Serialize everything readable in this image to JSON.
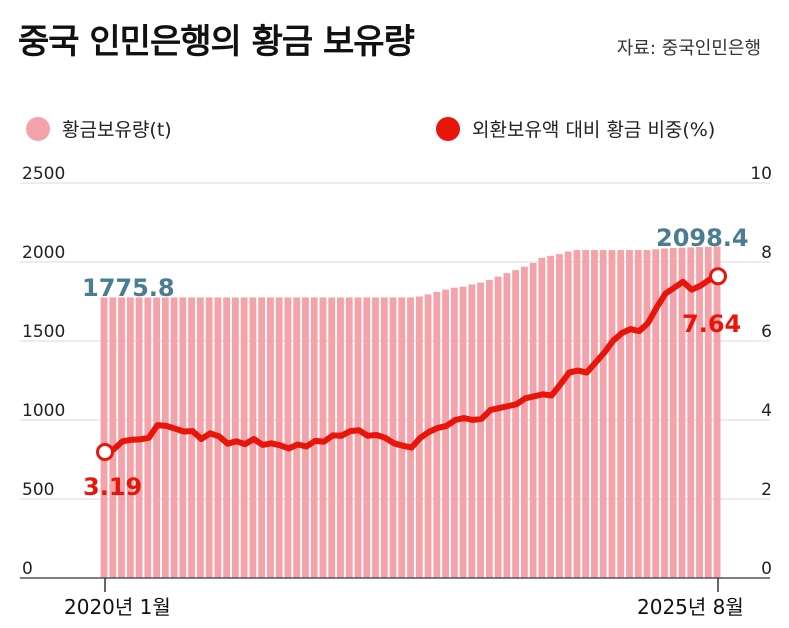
{
  "title": "중국 인민은행의 황금 보유량",
  "source": "자료: 중국인민은행",
  "legend": {
    "bars": "황금보유량(t)",
    "line": "외환보유액 대비 황금 비중(%)"
  },
  "colors": {
    "bar": "#f5a3aa",
    "bar_gap": "#ffffff",
    "line": "#e8150b",
    "annotation_blue": "#4a7d92",
    "grid": "#d9d9d9"
  },
  "annotations": {
    "first_bar": "1775.8",
    "last_bar": "2098.4",
    "first_line": "3.19",
    "last_line": "7.64"
  },
  "chart_data": {
    "type": "bar",
    "x_start_label": "2020년 1월",
    "x_end_label": "2025년 8월",
    "y_left": {
      "label": "",
      "ticks": [
        "0",
        "500",
        "1000",
        "1500",
        "2000",
        "2500"
      ],
      "lim": [
        0,
        2500
      ]
    },
    "y_right": {
      "label": "",
      "ticks": [
        "0",
        "2",
        "4",
        "6",
        "8",
        "10"
      ],
      "lim": [
        0,
        10
      ]
    },
    "grid": true,
    "legend_position": "top",
    "series": [
      {
        "name": "황금보유량(t)",
        "type": "bar",
        "axis": "left",
        "values": [
          1775.8,
          1775.8,
          1775.8,
          1775.8,
          1775.8,
          1775.8,
          1775.8,
          1775.8,
          1775.8,
          1775.8,
          1775.8,
          1775.8,
          1775.8,
          1775.8,
          1775.8,
          1775.8,
          1775.8,
          1775.8,
          1775.8,
          1775.8,
          1775.8,
          1775.8,
          1775.8,
          1775.8,
          1775.8,
          1775.8,
          1775.8,
          1775.8,
          1775.8,
          1775.8,
          1775.8,
          1775.8,
          1775.8,
          1775.8,
          1775.8,
          1775.8,
          1781.6,
          1794.9,
          1810.4,
          1825.3,
          1837.6,
          1844.0,
          1857.7,
          1869.8,
          1886.6,
          1907.4,
          1929.6,
          1948.3,
          1970.3,
          1993.7,
          2026.3,
          2038.8,
          2049.8,
          2066.4,
          2075.7,
          2075.7,
          2075.7,
          2075.7,
          2075.7,
          2075.7,
          2075.7,
          2075.7,
          2075.7,
          2080.4,
          2085.7,
          2088.5,
          2090.6,
          2092.4,
          2094.6,
          2096.6,
          2098.4
        ]
      },
      {
        "name": "외환보유액 대비 황금 비중(%)",
        "type": "line",
        "axis": "right",
        "values": [
          3.19,
          3.26,
          3.46,
          3.5,
          3.51,
          3.55,
          3.87,
          3.85,
          3.78,
          3.71,
          3.72,
          3.52,
          3.66,
          3.59,
          3.4,
          3.46,
          3.39,
          3.52,
          3.37,
          3.41,
          3.36,
          3.28,
          3.38,
          3.33,
          3.47,
          3.45,
          3.61,
          3.6,
          3.72,
          3.74,
          3.6,
          3.62,
          3.55,
          3.41,
          3.35,
          3.3,
          3.55,
          3.7,
          3.8,
          3.85,
          4.0,
          4.05,
          4.0,
          4.03,
          4.25,
          4.3,
          4.35,
          4.4,
          4.55,
          4.6,
          4.65,
          4.62,
          4.9,
          5.2,
          5.25,
          5.2,
          5.45,
          5.7,
          6.0,
          6.2,
          6.3,
          6.25,
          6.45,
          6.85,
          7.2,
          7.35,
          7.5,
          7.3,
          7.4,
          7.55,
          7.64
        ]
      }
    ]
  }
}
